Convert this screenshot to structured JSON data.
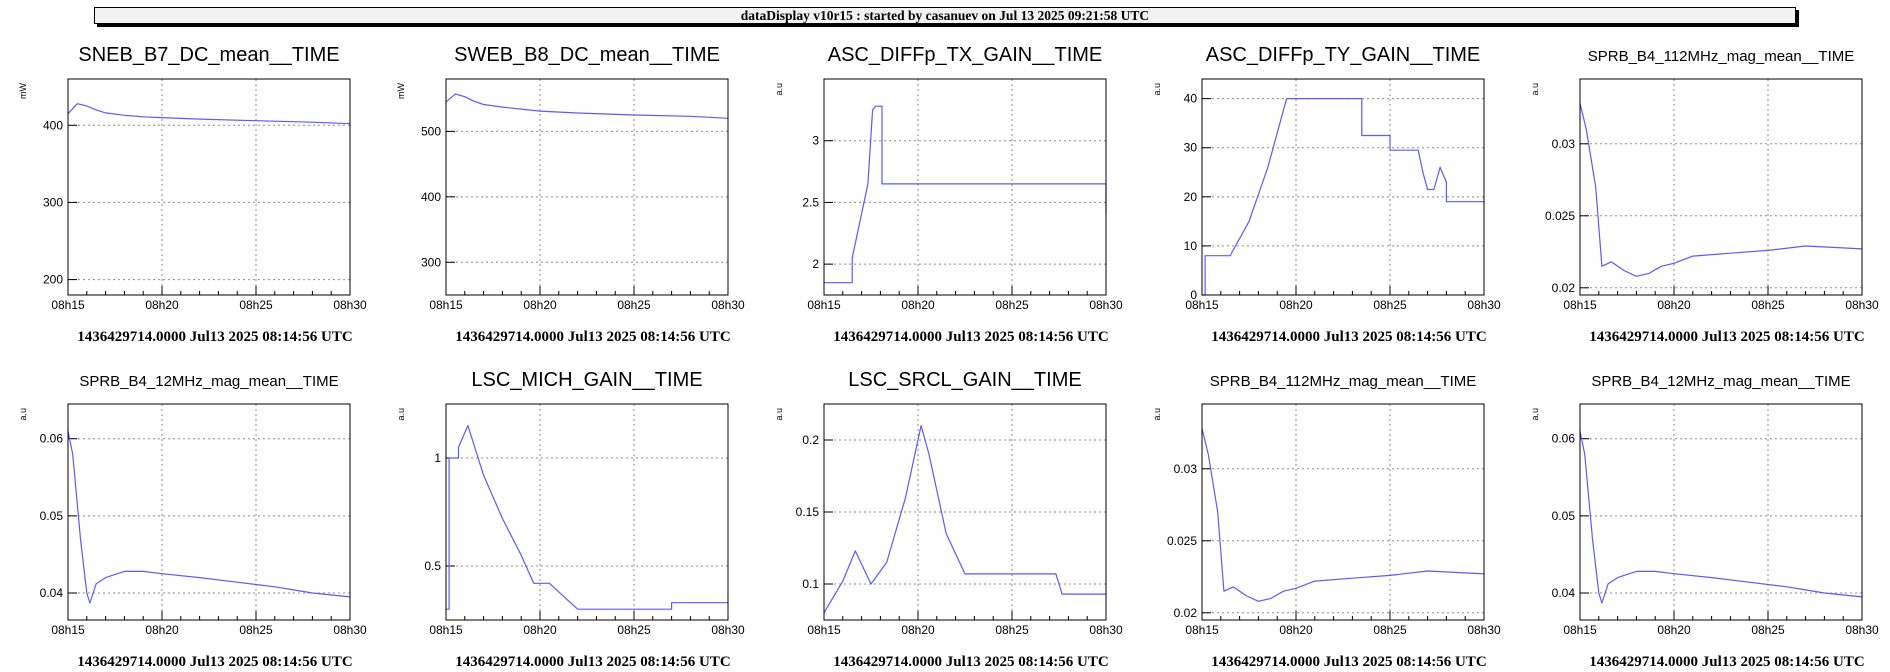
{
  "header": {
    "title": "dataDisplay v10r15 : started by casanuev on Jul 13 2025 09:21:58 UTC"
  },
  "footer_text": "1436429714.0000 Jul13 2025 08:14:56 UTC",
  "x_tick_labels": [
    "08h15",
    "08h20",
    "08h25",
    "08h30"
  ],
  "colors": {
    "series": "#5a5aff",
    "grid": "#8c8c8c",
    "axis": "#000000",
    "header_bg": "#f2f2f2"
  },
  "chart_data": [
    {
      "type": "line",
      "title": "SNEB_B7_DC_mean__TIME",
      "ylabel": "mW",
      "xlim": [
        "08:15:00",
        "08:30:00"
      ],
      "ylim": [
        180,
        460
      ],
      "yticks": [
        200,
        300,
        400
      ],
      "grid": true,
      "series": [
        {
          "x": [
            "08:15:00",
            "08:15:30",
            "08:16:00",
            "08:16:30",
            "08:17:00",
            "08:18:00",
            "08:19:00",
            "08:20:00",
            "08:22:00",
            "08:25:00",
            "08:28:00",
            "08:30:00"
          ],
          "y": [
            415,
            428,
            425,
            420,
            416,
            413,
            411,
            410,
            408,
            406,
            404,
            402
          ]
        }
      ]
    },
    {
      "type": "line",
      "title": "SWEB_B8_DC_mean__TIME",
      "ylabel": "mW",
      "xlim": [
        "08:15:00",
        "08:30:00"
      ],
      "ylim": [
        250,
        580
      ],
      "yticks": [
        300,
        400,
        500
      ],
      "grid": true,
      "series": [
        {
          "x": [
            "08:15:00",
            "08:15:30",
            "08:16:00",
            "08:16:30",
            "08:17:00",
            "08:18:00",
            "08:19:00",
            "08:20:00",
            "08:22:00",
            "08:25:00",
            "08:28:00",
            "08:30:00"
          ],
          "y": [
            545,
            557,
            553,
            546,
            541,
            537,
            534,
            531,
            528,
            525,
            523,
            520
          ]
        }
      ]
    },
    {
      "type": "line",
      "title": "ASC_DIFFp_TX_GAIN__TIME",
      "ylabel": "a.u",
      "xlim": [
        "08:15:00",
        "08:30:00"
      ],
      "ylim": [
        1.75,
        3.5
      ],
      "yticks": [
        2,
        2.5,
        3
      ],
      "grid": true,
      "series": [
        {
          "x": [
            "08:15:00",
            "08:16:30",
            "08:16:30",
            "08:17:20",
            "08:17:35",
            "08:17:45",
            "08:18:05",
            "08:18:05",
            "08:30:00",
            "08:30:00"
          ],
          "y": [
            1.85,
            1.85,
            2.05,
            2.65,
            3.25,
            3.28,
            3.28,
            2.65,
            2.65,
            2.4
          ]
        }
      ]
    },
    {
      "type": "line",
      "title": "ASC_DIFFp_TY_GAIN__TIME",
      "ylabel": "a.u",
      "xlim": [
        "08:15:00",
        "08:30:00"
      ],
      "ylim": [
        0,
        44
      ],
      "yticks": [
        0,
        10,
        20,
        30,
        40
      ],
      "grid": true,
      "series": [
        {
          "x": [
            "08:15:00",
            "08:15:10",
            "08:15:10",
            "08:16:30",
            "08:17:30",
            "08:18:30",
            "08:19:30",
            "08:23:30",
            "08:23:30",
            "08:25:00",
            "08:25:00",
            "08:26:30",
            "08:26:45",
            "08:27:00",
            "08:27:20",
            "08:27:40",
            "08:28:00",
            "08:28:00",
            "08:30:00"
          ],
          "y": [
            0,
            0,
            8,
            8,
            15,
            26,
            40,
            40,
            32.5,
            32.5,
            29.5,
            29.5,
            25,
            21.5,
            21.5,
            26,
            23,
            19,
            19
          ]
        }
      ]
    },
    {
      "type": "line",
      "title": "SPRB_B4_112MHz_mag_mean__TIME",
      "ylabel": "a.u",
      "xlim": [
        "08:15:00",
        "08:30:00"
      ],
      "ylim": [
        0.0195,
        0.0345
      ],
      "yticks": [
        0.02,
        0.025,
        0.03
      ],
      "grid": true,
      "series": [
        {
          "x": [
            "08:15:00",
            "08:15:20",
            "08:15:50",
            "08:16:10",
            "08:16:40",
            "08:17:20",
            "08:18:00",
            "08:18:40",
            "08:19:20",
            "08:20:00",
            "08:21:00",
            "08:23:00",
            "08:25:00",
            "08:27:00",
            "08:30:00"
          ],
          "y": [
            0.0328,
            0.031,
            0.027,
            0.0215,
            0.0218,
            0.0212,
            0.0208,
            0.021,
            0.0215,
            0.0217,
            0.0222,
            0.0224,
            0.0226,
            0.0229,
            0.0227
          ]
        }
      ]
    },
    {
      "type": "line",
      "title": "SPRB_B4_12MHz_mag_mean__TIME",
      "ylabel": "a.u",
      "xlim": [
        "08:15:00",
        "08:30:00"
      ],
      "ylim": [
        0.0365,
        0.0645
      ],
      "yticks": [
        0.04,
        0.05,
        0.06
      ],
      "grid": true,
      "series": [
        {
          "x": [
            "08:15:00",
            "08:15:15",
            "08:15:40",
            "08:16:00",
            "08:16:10",
            "08:16:30",
            "08:17:00",
            "08:18:00",
            "08:19:00",
            "08:20:00",
            "08:22:00",
            "08:24:00",
            "08:26:00",
            "08:27:00",
            "08:28:00",
            "08:30:00"
          ],
          "y": [
            0.061,
            0.058,
            0.047,
            0.04,
            0.0387,
            0.0412,
            0.042,
            0.0428,
            0.0428,
            0.0425,
            0.042,
            0.0414,
            0.0408,
            0.0404,
            0.04,
            0.0395
          ]
        }
      ]
    },
    {
      "type": "line",
      "title": "LSC_MICH_GAIN__TIME",
      "ylabel": "a.u",
      "xlim": [
        "08:15:00",
        "08:30:00"
      ],
      "ylim": [
        0.25,
        1.25
      ],
      "yticks": [
        0.5,
        1
      ],
      "grid": true,
      "series": [
        {
          "x": [
            "08:15:00",
            "08:15:10",
            "08:15:10",
            "08:15:40",
            "08:15:40",
            "08:16:10",
            "08:17:00",
            "08:18:00",
            "08:19:00",
            "08:19:40",
            "08:20:30",
            "08:22:00",
            "08:27:00",
            "08:27:00",
            "08:30:00"
          ],
          "y": [
            0.3,
            0.3,
            1.0,
            1.0,
            1.05,
            1.15,
            0.92,
            0.72,
            0.55,
            0.42,
            0.42,
            0.3,
            0.3,
            0.33,
            0.33
          ]
        }
      ]
    },
    {
      "type": "line",
      "title": "LSC_SRCL_GAIN__TIME",
      "ylabel": "a.u",
      "xlim": [
        "08:15:00",
        "08:30:00"
      ],
      "ylim": [
        0.075,
        0.225
      ],
      "yticks": [
        0.1,
        0.15,
        0.2
      ],
      "grid": true,
      "series": [
        {
          "x": [
            "08:15:00",
            "08:16:00",
            "08:16:40",
            "08:17:30",
            "08:18:20",
            "08:19:20",
            "08:20:10",
            "08:20:35",
            "08:21:30",
            "08:22:30",
            "08:22:30",
            "08:27:20",
            "08:27:40",
            "08:30:00"
          ],
          "y": [
            0.08,
            0.102,
            0.123,
            0.1,
            0.115,
            0.16,
            0.21,
            0.19,
            0.135,
            0.107,
            0.107,
            0.107,
            0.093,
            0.093
          ]
        }
      ]
    },
    {
      "type": "line",
      "title": "SPRB_B4_112MHz_mag_mean__TIME",
      "ylabel": "a.u",
      "xlim": [
        "08:15:00",
        "08:30:00"
      ],
      "ylim": [
        0.0195,
        0.0345
      ],
      "yticks": [
        0.02,
        0.025,
        0.03
      ],
      "grid": true,
      "series": [
        {
          "x": [
            "08:15:00",
            "08:15:20",
            "08:15:50",
            "08:16:10",
            "08:16:40",
            "08:17:20",
            "08:18:00",
            "08:18:40",
            "08:19:20",
            "08:20:00",
            "08:21:00",
            "08:23:00",
            "08:25:00",
            "08:27:00",
            "08:30:00"
          ],
          "y": [
            0.0328,
            0.031,
            0.027,
            0.0215,
            0.0218,
            0.0212,
            0.0208,
            0.021,
            0.0215,
            0.0217,
            0.0222,
            0.0224,
            0.0226,
            0.0229,
            0.0227
          ]
        }
      ]
    },
    {
      "type": "line",
      "title": "SPRB_B4_12MHz_mag_mean__TIME",
      "ylabel": "a.u",
      "xlim": [
        "08:15:00",
        "08:30:00"
      ],
      "ylim": [
        0.0365,
        0.0645
      ],
      "yticks": [
        0.04,
        0.05,
        0.06
      ],
      "grid": true,
      "series": [
        {
          "x": [
            "08:15:00",
            "08:15:15",
            "08:15:40",
            "08:16:00",
            "08:16:10",
            "08:16:30",
            "08:17:00",
            "08:18:00",
            "08:19:00",
            "08:20:00",
            "08:22:00",
            "08:24:00",
            "08:26:00",
            "08:27:00",
            "08:28:00",
            "08:30:00"
          ],
          "y": [
            0.061,
            0.058,
            0.047,
            0.04,
            0.0387,
            0.0412,
            0.042,
            0.0428,
            0.0428,
            0.0425,
            0.042,
            0.0414,
            0.0408,
            0.0404,
            0.04,
            0.0395
          ]
        }
      ]
    }
  ]
}
